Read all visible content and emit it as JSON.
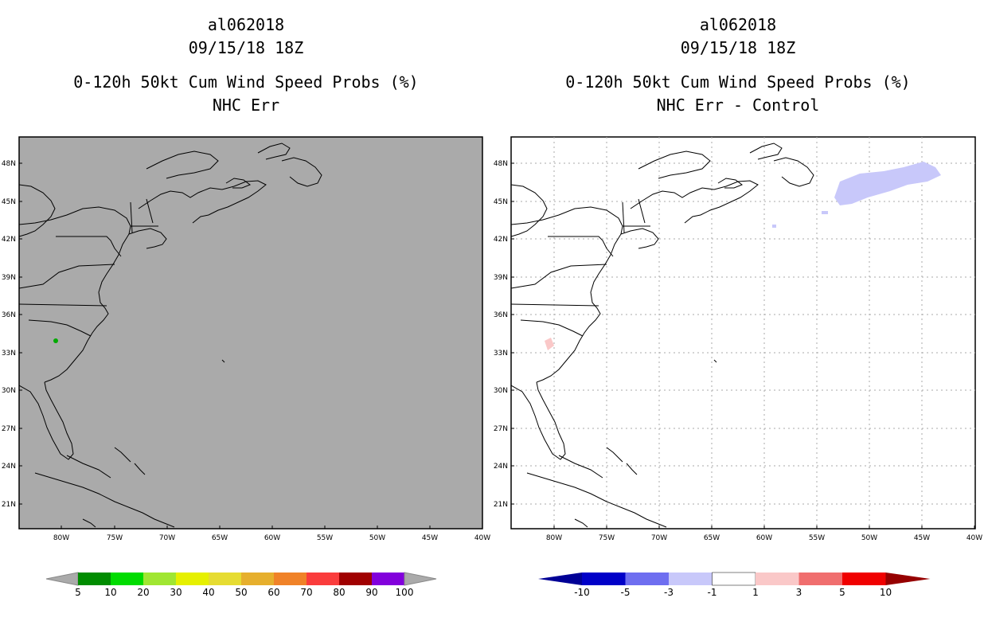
{
  "left_panel": {
    "storm_id": "al062018",
    "datetime": "09/15/18 18Z",
    "product": "0-120h 50kt Cum Wind Speed Probs (%)",
    "subtitle": "NHC Err",
    "legend_labels": [
      "5",
      "10",
      "20",
      "30",
      "40",
      "50",
      "60",
      "70",
      "80",
      "90",
      "100"
    ],
    "legend_colors": [
      "#008c00",
      "#00dc00",
      "#a0e632",
      "#e6f000",
      "#e6dc32",
      "#e6af2d",
      "#f08228",
      "#fa3c3c",
      "#a00000",
      "#8200dc"
    ],
    "background_color": "#aaaaaa"
  },
  "right_panel": {
    "storm_id": "al062018",
    "datetime": "09/15/18 18Z",
    "product": "0-120h 50kt Cum Wind Speed Probs (%)",
    "subtitle": "NHC Err - Control",
    "legend_labels": [
      "-10",
      "-5",
      "-3",
      "-1",
      "1",
      "3",
      "5",
      "10"
    ],
    "legend_colors": [
      "#0000c8",
      "#6e6ef0",
      "#c8c8fa",
      "#ffffff",
      "#fac8c8",
      "#f06e6e",
      "#f00000"
    ],
    "legend_end_left": "#000096",
    "legend_end_right": "#960000"
  },
  "lat_labels": [
    "48N",
    "45N",
    "42N",
    "39N",
    "36N",
    "33N",
    "30N",
    "27N",
    "24N",
    "21N"
  ],
  "lon_labels": [
    "80W",
    "75W",
    "70W",
    "65W",
    "60W",
    "55W",
    "50W",
    "45W",
    "40W"
  ]
}
